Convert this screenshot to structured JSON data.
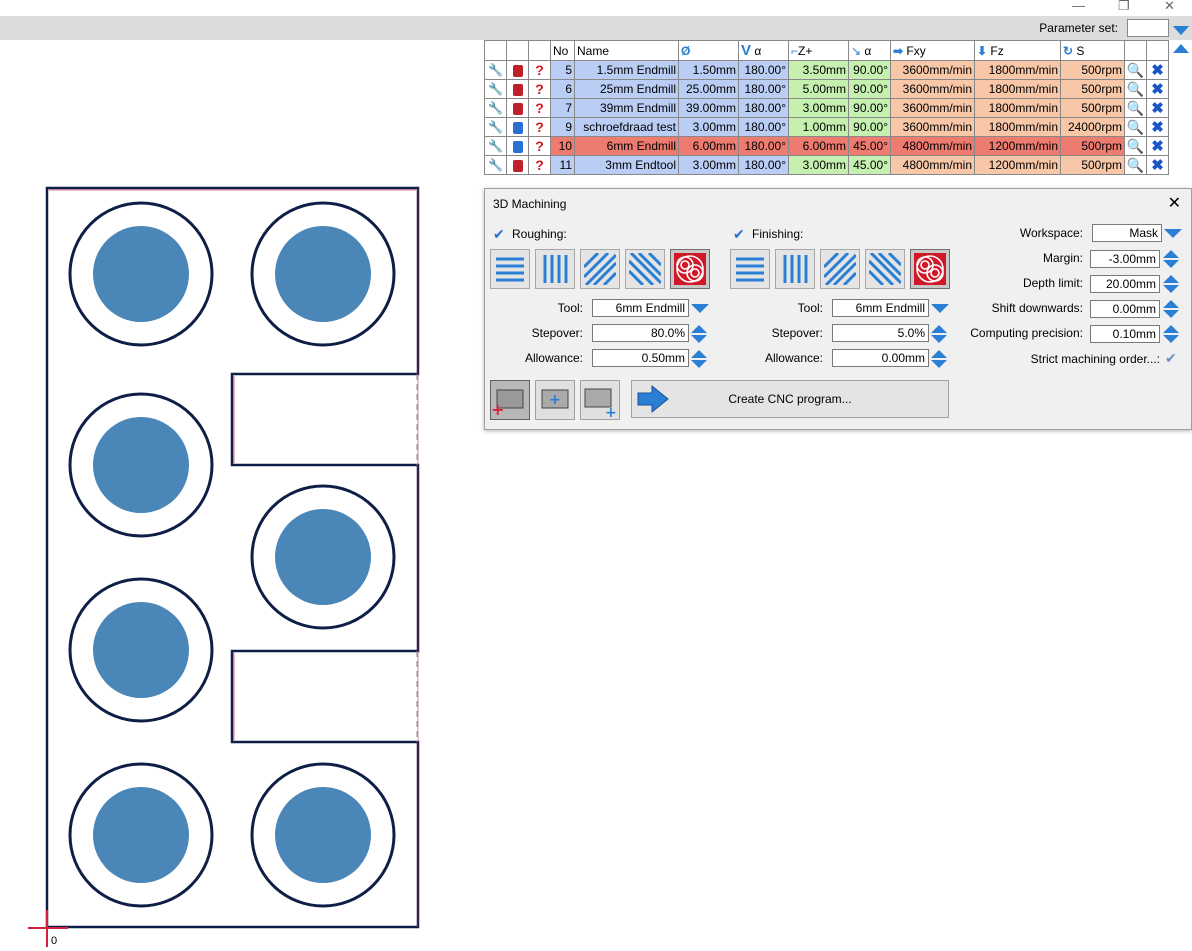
{
  "window_controls": {
    "minimize": "—",
    "maximize": "❐",
    "close": "✕"
  },
  "param_set_label": "Parameter set:",
  "table": {
    "headers": {
      "no": "No",
      "name": "Name",
      "diameter": "Ø",
      "v_angle": "α",
      "z_plus": "Z+",
      "a_angle": "α",
      "fxy": "Fxy",
      "fz": "Fz",
      "s": "S"
    },
    "rows": [
      {
        "lock": "closed",
        "no": "5",
        "name": "1.5mm Endmill",
        "d": "1.50mm",
        "v": "180.00°",
        "z": "3.50mm",
        "a": "90.00°",
        "fxy": "3600mm/min",
        "fz": "1800mm/min",
        "s": "500rpm",
        "highlight": false
      },
      {
        "lock": "closed",
        "no": "6",
        "name": "25mm Endmill",
        "d": "25.00mm",
        "v": "180.00°",
        "z": "5.00mm",
        "a": "90.00°",
        "fxy": "3600mm/min",
        "fz": "1800mm/min",
        "s": "500rpm",
        "highlight": false
      },
      {
        "lock": "closed",
        "no": "7",
        "name": "39mm Endmill",
        "d": "39.00mm",
        "v": "180.00°",
        "z": "3.00mm",
        "a": "90.00°",
        "fxy": "3600mm/min",
        "fz": "1800mm/min",
        "s": "500rpm",
        "highlight": false
      },
      {
        "lock": "open",
        "no": "9",
        "name": "schroefdraad test",
        "d": "3.00mm",
        "v": "180.00°",
        "z": "1.00mm",
        "a": "90.00°",
        "fxy": "3600mm/min",
        "fz": "1800mm/min",
        "s": "24000rpm",
        "highlight": false
      },
      {
        "lock": "open",
        "no": "10",
        "name": "6mm Endmill",
        "d": "6.00mm",
        "v": "180.00°",
        "z": "6.00mm",
        "a": "45.00°",
        "fxy": "4800mm/min",
        "fz": "1200mm/min",
        "s": "500rpm",
        "highlight": true
      },
      {
        "lock": "closed",
        "no": "11",
        "name": "3mm Endtool",
        "d": "3.00mm",
        "v": "180.00°",
        "z": "3.00mm",
        "a": "45.00°",
        "fxy": "4800mm/min",
        "fz": "1200mm/min",
        "s": "500rpm",
        "highlight": false
      }
    ]
  },
  "dialog": {
    "title": "3D Machining",
    "roughing": {
      "label": "Roughing:",
      "tool_label": "Tool:",
      "tool": "6mm Endmill",
      "stepover_label": "Stepover:",
      "stepover": "80.0%",
      "allowance_label": "Allowance:",
      "allowance": "0.50mm"
    },
    "finishing": {
      "label": "Finishing:",
      "tool_label": "Tool:",
      "tool": "6mm Endmill",
      "stepover_label": "Stepover:",
      "stepover": "5.0%",
      "allowance_label": "Allowance:",
      "allowance": "0.00mm"
    },
    "settings": {
      "workspace_label": "Workspace:",
      "workspace": "Mask",
      "margin_label": "Margin:",
      "margin": "-3.00mm",
      "depth_label": "Depth limit:",
      "depth": "20.00mm",
      "shift_label": "Shift downwards:",
      "shift": "0.00mm",
      "precision_label": "Computing precision:",
      "precision": "0.10mm",
      "strict_label": "Strict machining order...:"
    },
    "create_label": "Create CNC program..."
  },
  "origin_label": "0",
  "colors": {
    "accent": "#2a7fd4",
    "pocket_fill": "#4a86b8",
    "outline": "#0f1e46",
    "highlight_row": "#ee7b70"
  }
}
